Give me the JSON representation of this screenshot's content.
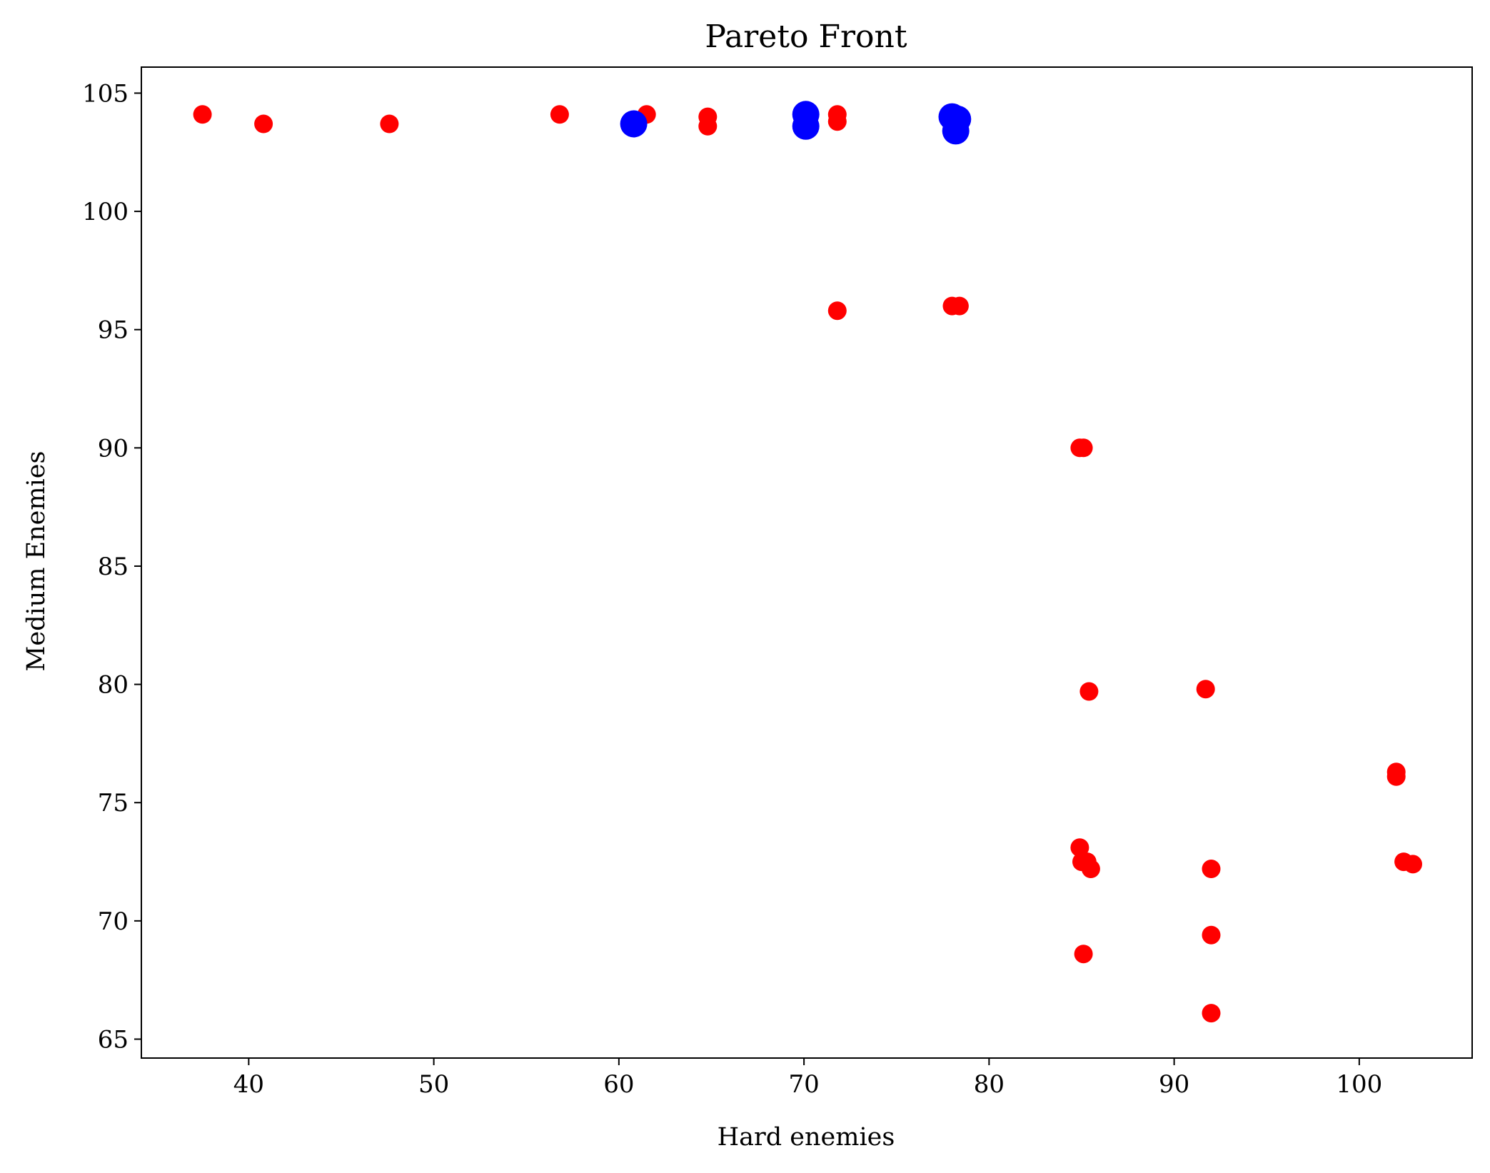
{
  "chart_data": {
    "type": "scatter",
    "title": "Pareto Front",
    "xlabel": "Hard enemies",
    "ylabel": "Medium Enemies",
    "xlim": [
      34.2,
      106.1
    ],
    "ylim": [
      64.2,
      106.1
    ],
    "x_ticks": [
      40,
      50,
      60,
      70,
      80,
      90,
      100
    ],
    "y_ticks": [
      65,
      70,
      75,
      80,
      85,
      90,
      95,
      100,
      105
    ],
    "grid": false,
    "legend": "none",
    "series": [
      {
        "color": "#ff0000",
        "marker_size": "small",
        "points": [
          {
            "x": 37.5,
            "y": 104.1
          },
          {
            "x": 40.8,
            "y": 103.7
          },
          {
            "x": 47.6,
            "y": 103.7
          },
          {
            "x": 56.8,
            "y": 104.1
          },
          {
            "x": 61.5,
            "y": 104.1
          },
          {
            "x": 64.8,
            "y": 104.0
          },
          {
            "x": 64.8,
            "y": 103.6
          },
          {
            "x": 71.8,
            "y": 104.1
          },
          {
            "x": 71.8,
            "y": 103.8
          },
          {
            "x": 71.8,
            "y": 95.8
          },
          {
            "x": 78.0,
            "y": 96.0
          },
          {
            "x": 78.4,
            "y": 96.0
          },
          {
            "x": 84.9,
            "y": 90.0
          },
          {
            "x": 85.1,
            "y": 90.0
          },
          {
            "x": 85.4,
            "y": 79.7
          },
          {
            "x": 91.7,
            "y": 79.8
          },
          {
            "x": 102.0,
            "y": 76.3
          },
          {
            "x": 102.0,
            "y": 76.1
          },
          {
            "x": 84.9,
            "y": 73.1
          },
          {
            "x": 85.0,
            "y": 72.5
          },
          {
            "x": 85.3,
            "y": 72.5
          },
          {
            "x": 85.5,
            "y": 72.2
          },
          {
            "x": 92.0,
            "y": 72.2
          },
          {
            "x": 102.4,
            "y": 72.5
          },
          {
            "x": 102.9,
            "y": 72.4
          },
          {
            "x": 92.0,
            "y": 69.4
          },
          {
            "x": 85.1,
            "y": 68.6
          },
          {
            "x": 92.0,
            "y": 66.1
          }
        ]
      },
      {
        "color": "#0000ff",
        "marker_size": "large",
        "points": [
          {
            "x": 60.8,
            "y": 103.7
          },
          {
            "x": 70.1,
            "y": 104.1
          },
          {
            "x": 70.1,
            "y": 103.6
          },
          {
            "x": 78.0,
            "y": 104.0
          },
          {
            "x": 78.3,
            "y": 103.9
          },
          {
            "x": 78.2,
            "y": 103.4
          }
        ]
      }
    ]
  }
}
